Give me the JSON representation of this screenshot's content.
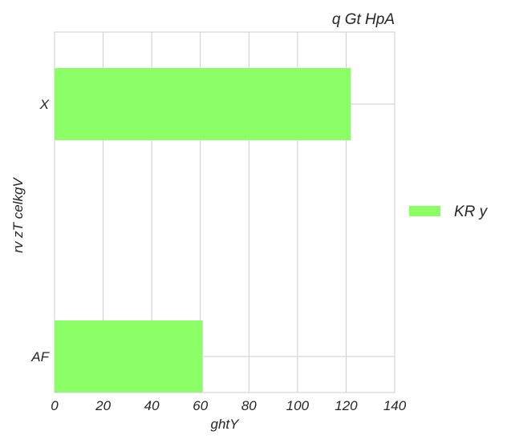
{
  "chart_data": {
    "type": "bar",
    "orientation": "horizontal",
    "title": "q Gt HpA",
    "xlabel": "ghtY",
    "ylabel": "rv zT celkgV",
    "categories": [
      "X",
      "AF"
    ],
    "series": [
      {
        "name": "KR y",
        "values": [
          122,
          61
        ],
        "color": "#8cff66"
      }
    ],
    "xlim": [
      0,
      140
    ],
    "xticks": [
      0,
      20,
      40,
      60,
      80,
      100,
      120,
      140
    ],
    "grid": true,
    "legend_position": "right"
  }
}
